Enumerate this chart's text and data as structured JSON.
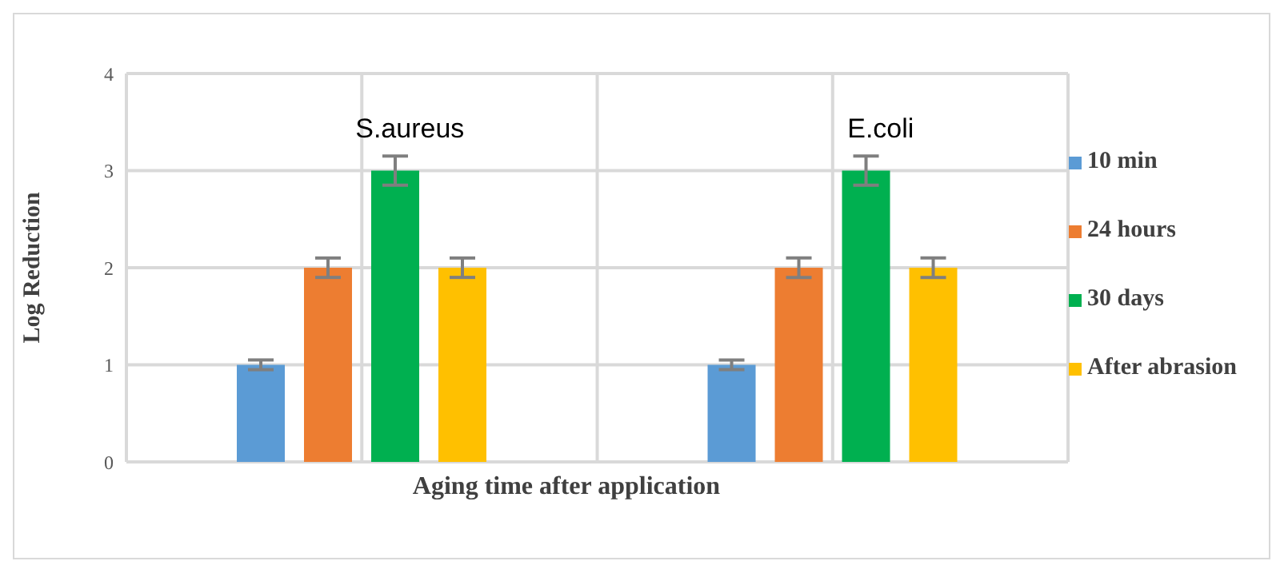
{
  "chart_data": {
    "type": "bar",
    "xlabel": "Aging time after application",
    "ylabel": "Log Reduction",
    "categories": [
      "S.aureus",
      "E.coli"
    ],
    "series": [
      {
        "name": "10 min",
        "color": "#5b9bd5",
        "values": [
          1,
          1
        ],
        "errors": [
          0.05,
          0.05
        ]
      },
      {
        "name": "24 hours",
        "color": "#ed7d31",
        "values": [
          2,
          2
        ],
        "errors": [
          0.1,
          0.1
        ]
      },
      {
        "name": "30 days",
        "color": "#00b050",
        "values": [
          3,
          3
        ],
        "errors": [
          0.15,
          0.15
        ]
      },
      {
        "name": "After abrasion",
        "color": "#ffc000",
        "values": [
          2,
          2
        ],
        "errors": [
          0.1,
          0.1
        ]
      }
    ],
    "ylim": [
      0,
      4
    ],
    "yticks": [
      0,
      1,
      2,
      3,
      4
    ],
    "grid": true,
    "legend": "right"
  }
}
